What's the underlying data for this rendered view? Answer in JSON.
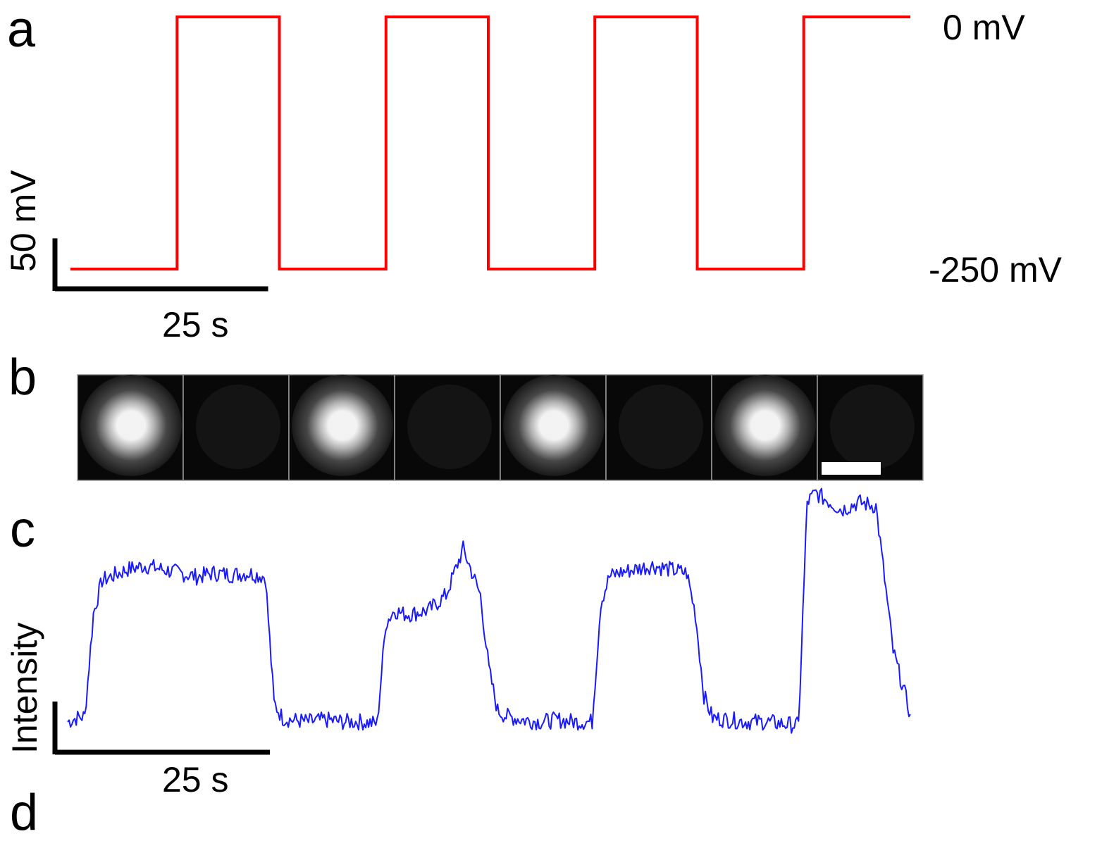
{
  "panels": {
    "a": {
      "label": "a"
    },
    "b": {
      "label": "b"
    },
    "c": {
      "label": "c"
    },
    "d": {
      "label": "d"
    }
  },
  "chart_data": [
    {
      "type": "line",
      "panel": "a",
      "series": [
        {
          "color": "#ff0000",
          "x": [
            0,
            12.5,
            12.5,
            24.5,
            24.5,
            37,
            37,
            49,
            49,
            61.5,
            61.5,
            73.5,
            73.5,
            86,
            86,
            98.5
          ],
          "values": [
            -250,
            -250,
            0,
            0,
            -250,
            -250,
            0,
            0,
            -250,
            -250,
            0,
            0,
            -250,
            -250,
            0,
            0
          ]
        }
      ],
      "level_labels": [
        "0 mV",
        "-250 mV"
      ],
      "scale_bar": {
        "x_label": "25 s",
        "y_label": "50 mV",
        "x_value": 25,
        "y_value": 50
      },
      "axes_visible": false
    },
    {
      "type": "line",
      "panel": "c",
      "series": [
        {
          "color": "#1a1aff",
          "x": [
            0,
            1,
            2,
            3,
            4,
            5,
            7,
            9,
            11,
            13,
            15,
            17,
            19,
            21,
            23,
            24,
            25,
            26,
            28,
            30,
            32,
            34,
            36,
            37,
            38,
            39,
            40,
            42,
            44,
            46,
            48,
            49,
            50,
            51,
            53,
            55,
            57,
            59,
            61,
            62,
            63,
            64,
            66,
            68,
            70,
            72,
            73,
            74,
            75,
            77,
            79,
            81,
            83,
            85,
            86,
            87,
            88,
            90,
            92,
            94,
            96,
            98
          ],
          "values": [
            0.02,
            0.04,
            0.05,
            0.6,
            0.78,
            0.8,
            0.84,
            0.86,
            0.84,
            0.82,
            0.8,
            0.82,
            0.81,
            0.82,
            0.8,
            0.12,
            0.04,
            0.03,
            0.02,
            0.03,
            0.02,
            0.02,
            0.01,
            0.55,
            0.62,
            0.6,
            0.6,
            0.62,
            0.7,
            0.95,
            0.7,
            0.3,
            0.08,
            0.05,
            0.03,
            0.02,
            0.03,
            0.02,
            0.02,
            0.66,
            0.8,
            0.82,
            0.84,
            0.86,
            0.84,
            0.82,
            0.6,
            0.16,
            0.04,
            0.03,
            0.02,
            0.02,
            0.01,
            0.0,
            1.2,
            1.25,
            1.22,
            1.16,
            1.2,
            1.18,
            0.4,
            0.06
          ]
        }
      ],
      "scale_bar": {
        "x_label": "25 s",
        "y_label": "Intensity",
        "x_value": 25
      },
      "axes_visible": false
    }
  ],
  "image_strip": {
    "frames": [
      {
        "state": "bright"
      },
      {
        "state": "dark"
      },
      {
        "state": "bright"
      },
      {
        "state": "dark"
      },
      {
        "state": "bright"
      },
      {
        "state": "dark"
      },
      {
        "state": "bright"
      },
      {
        "state": "dark",
        "scale_bar": true
      }
    ]
  }
}
